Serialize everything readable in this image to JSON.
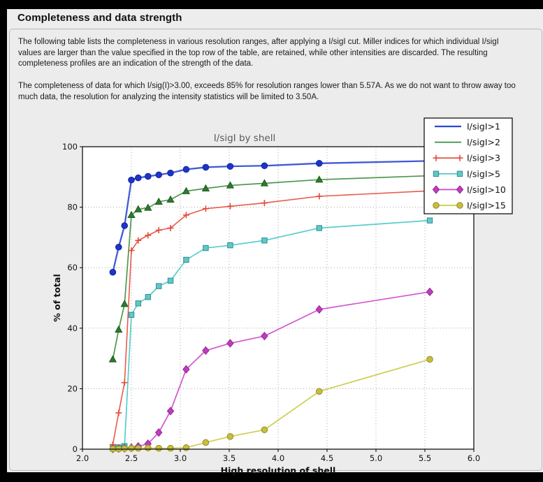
{
  "panel": {
    "title": "Completeness and data strength",
    "paragraph1": "The following table lists the completeness in various resolution ranges, after applying a I/sigI cut. Miller indices for which individual I/sigI values are larger than the value specified in the top row of the table, are retained, while other intensities are discarded. The resulting completeness profiles are an indication of the strength of the data.",
    "paragraph2": "The completeness of data for which I/sig(I)>3.00, exceeds  85% for resolution ranges lower than 5.57A. As we do not want to throw away too much data, the resolution for analyzing the intensity statistics will be limited to 3.50A."
  },
  "chart_data": {
    "type": "line",
    "title": "I/sigI by shell",
    "xlabel": "High resolution of shell",
    "ylabel": "% of total",
    "xlim": [
      2.0,
      6.0
    ],
    "ylim": [
      0,
      100
    ],
    "xticks": [
      2.0,
      2.5,
      3.0,
      3.5,
      4.0,
      4.5,
      5.0,
      5.5,
      6.0
    ],
    "yticks": [
      0,
      20,
      40,
      60,
      80,
      100
    ],
    "xtick_decimals": 1,
    "grid": true,
    "legend_position": "top-right",
    "colors": {
      "figure_bg": "#ececec",
      "plot_bg": "#ffffff",
      "frame": "#000000",
      "grid": "#a9a9a9",
      "title_text": "#5a5a5a",
      "legend_bg": "#ffffff",
      "legend_border": "#000000"
    },
    "x": [
      2.31,
      2.37,
      2.43,
      2.5,
      2.57,
      2.67,
      2.78,
      2.9,
      3.06,
      3.26,
      3.51,
      3.86,
      4.42,
      5.55
    ],
    "series": [
      {
        "name": "I/sigI>1",
        "color": "#2c47d4",
        "marker": "circle",
        "marker_fill": "#1d34cb",
        "marker_edge": "#14249a",
        "line_width": 2.3,
        "legend_marker": false,
        "values": [
          58.5,
          66.8,
          73.9,
          89.0,
          89.7,
          90.2,
          90.7,
          91.3,
          92.5,
          93.2,
          93.5,
          93.7,
          94.5,
          95.3
        ]
      },
      {
        "name": "I/sigI>2",
        "color": "#3c8c3c",
        "marker": "triangle",
        "marker_fill": "#2c7c2c",
        "marker_edge": "#1d581d",
        "line_width": 1.7,
        "legend_marker": false,
        "values": [
          29.7,
          39.5,
          48.0,
          77.4,
          79.3,
          79.8,
          81.8,
          82.5,
          85.3,
          86.2,
          87.2,
          87.9,
          89.1,
          90.4
        ]
      },
      {
        "name": "I/sigI>3",
        "color": "#e5483a",
        "marker": "plus",
        "marker_fill": "#e5483a",
        "marker_edge": "#e5483a",
        "line_width": 1.6,
        "legend_marker": true,
        "values": [
          1.5,
          12.0,
          22.0,
          65.7,
          69.0,
          70.7,
          72.4,
          73.1,
          77.4,
          79.5,
          80.3,
          81.4,
          83.6,
          85.4
        ]
      },
      {
        "name": "I/sigI>5",
        "color": "#45c8c8",
        "marker": "square",
        "marker_fill": "#64c6c6",
        "marker_edge": "#2c8f8f",
        "line_width": 1.7,
        "legend_marker": true,
        "values": [
          0.3,
          0.6,
          1.0,
          44.4,
          48.2,
          50.3,
          53.9,
          55.7,
          62.6,
          66.5,
          67.4,
          69.0,
          73.1,
          75.6
        ]
      },
      {
        "name": "I/sigI>10",
        "color": "#cd44cd",
        "marker": "diamond",
        "marker_fill": "#c23ac2",
        "marker_edge": "#8c2a8c",
        "line_width": 1.7,
        "legend_marker": true,
        "values": [
          0.1,
          0.2,
          0.3,
          0.5,
          0.9,
          1.8,
          5.5,
          12.6,
          26.4,
          32.6,
          35.0,
          37.4,
          46.2,
          52.0
        ]
      },
      {
        "name": "I/sigI>15",
        "color": "#c9c93e",
        "marker": "circle",
        "marker_fill": "#c9bd3f",
        "marker_edge": "#8f8f2a",
        "line_width": 1.7,
        "legend_marker": true,
        "values": [
          0.1,
          0.1,
          0.2,
          0.3,
          0.3,
          0.4,
          0.3,
          0.3,
          0.5,
          2.2,
          4.2,
          6.4,
          19.1,
          29.7
        ]
      }
    ]
  }
}
